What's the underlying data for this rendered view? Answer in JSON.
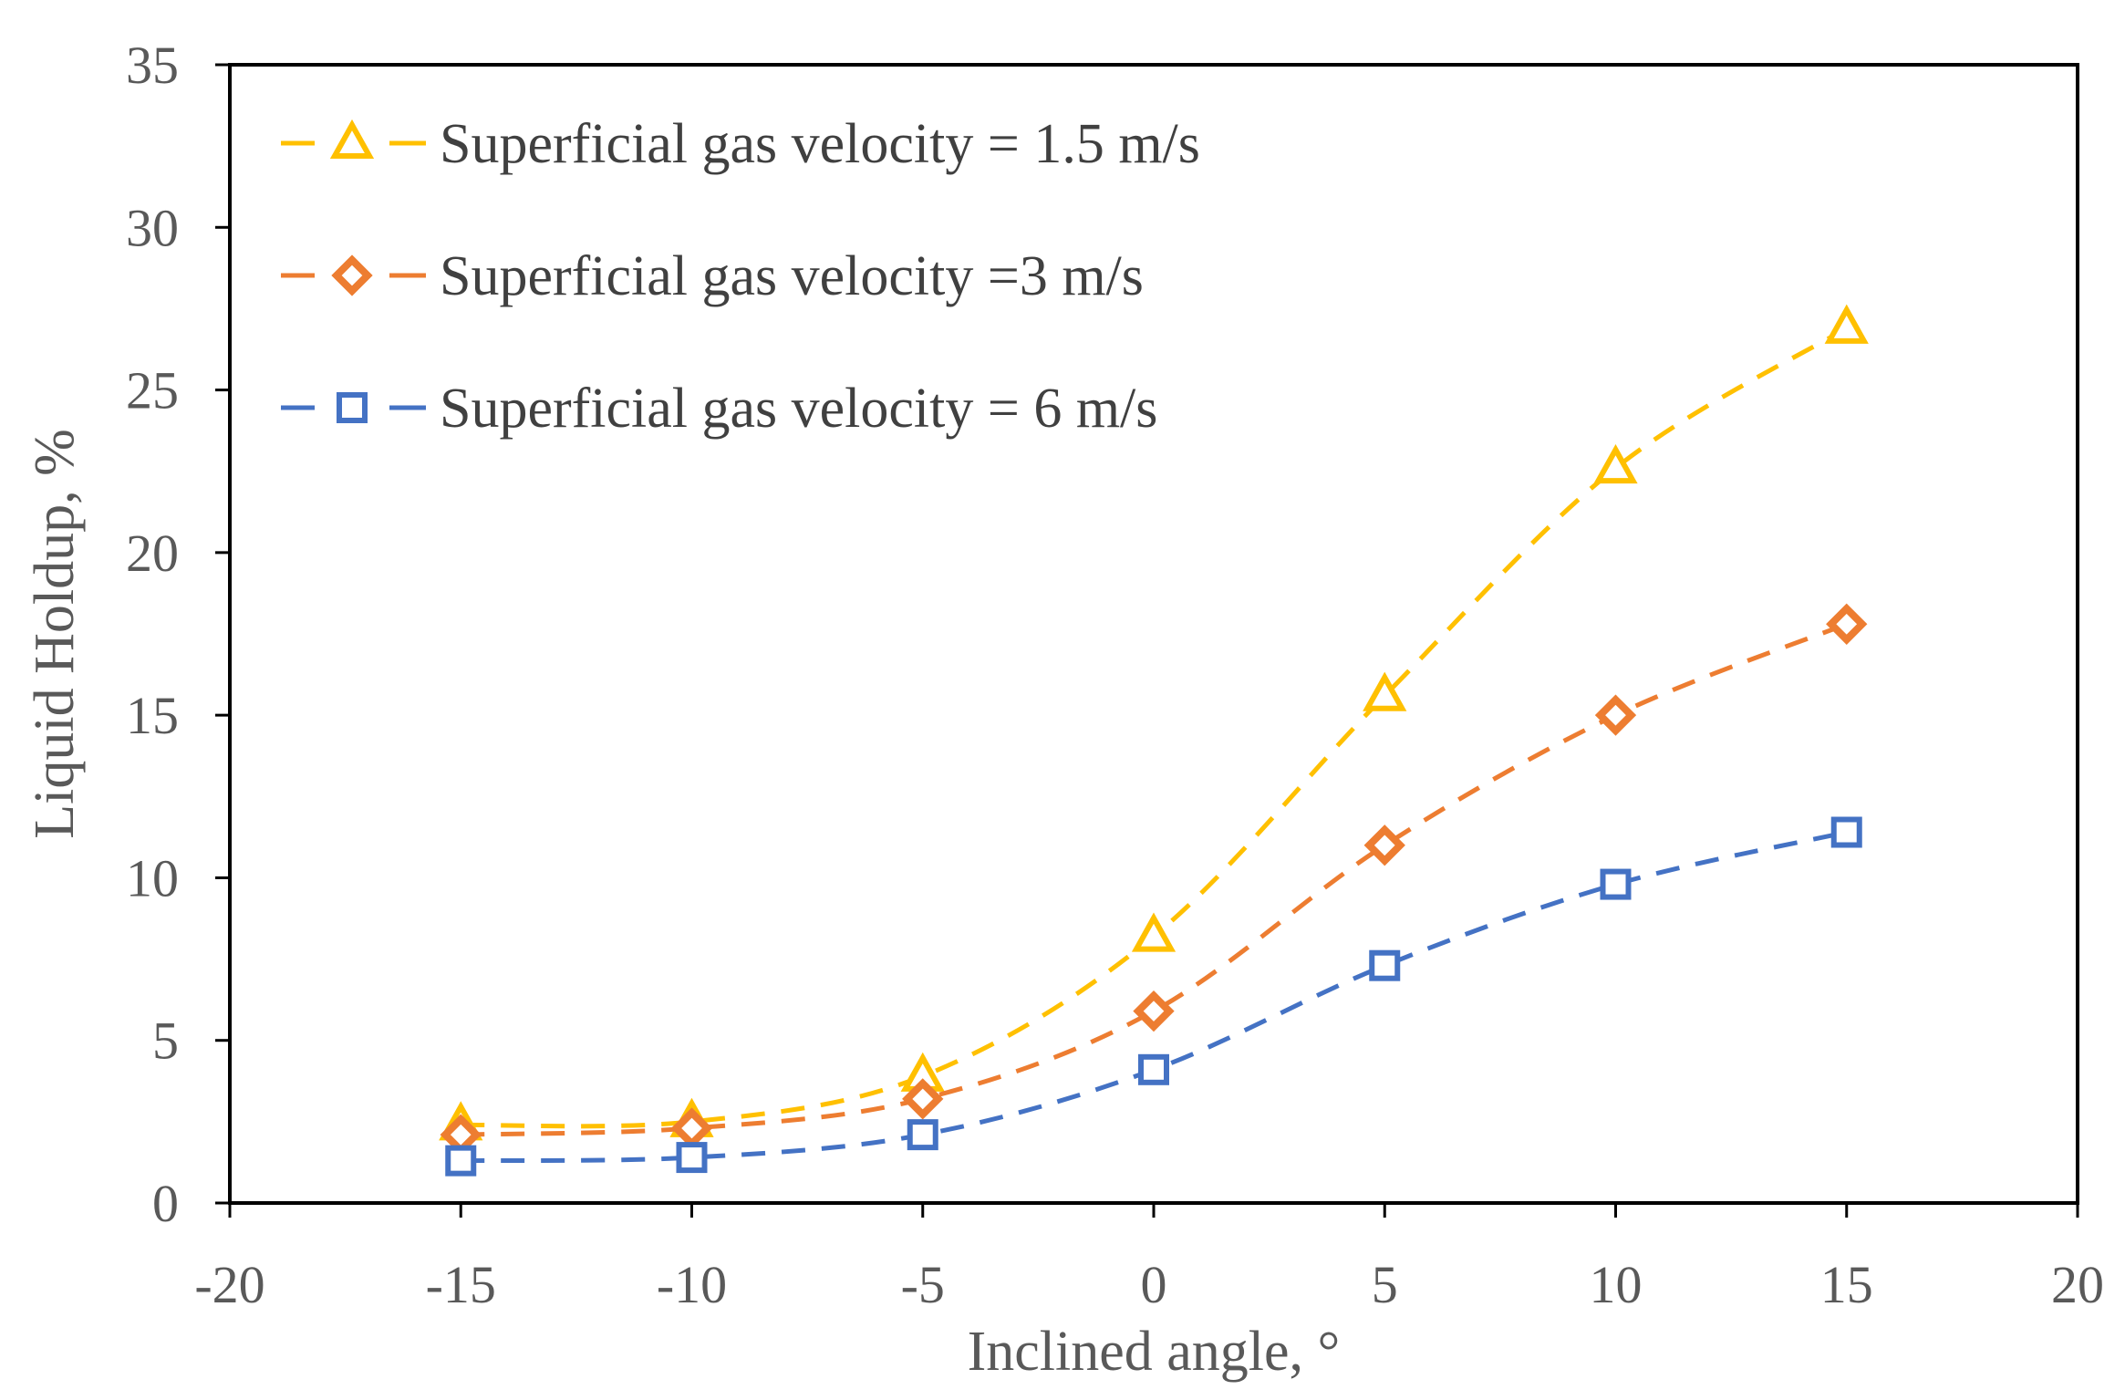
{
  "chart_data": {
    "type": "line",
    "title": "",
    "xlabel": "Inclined angle, °",
    "ylabel": "Liquid Holdup, %",
    "xlim": [
      -20,
      20
    ],
    "ylim": [
      0,
      35
    ],
    "x_ticks": [
      -20,
      -15,
      -10,
      -5,
      0,
      5,
      10,
      15,
      20
    ],
    "y_ticks": [
      0,
      5,
      10,
      15,
      20,
      25,
      30,
      35
    ],
    "x_tick_labels": [
      "-20",
      "-15",
      "-10",
      "-5",
      "0",
      "5",
      "10",
      "15",
      "20"
    ],
    "y_tick_labels": [
      "0",
      "5",
      "10",
      "15",
      "20",
      "25",
      "30",
      "35"
    ],
    "grid": false,
    "legend_position": "top-left",
    "x": [
      -15,
      -10,
      -5,
      0,
      5,
      10,
      15
    ],
    "series": [
      {
        "name": "Superficial gas velocity = 1.5 m/s",
        "color": "#FFC000",
        "marker": "triangle",
        "line_style": "dashed",
        "values": [
          2.4,
          2.5,
          3.9,
          8.2,
          15.6,
          22.6,
          26.9
        ]
      },
      {
        "name": "Superficial gas velocity =3 m/s",
        "color": "#ED7D31",
        "marker": "diamond",
        "line_style": "dashed",
        "values": [
          2.1,
          2.3,
          3.2,
          5.9,
          11.0,
          15.0,
          17.8
        ]
      },
      {
        "name": "Superficial gas velocity = 6 m/s",
        "color": "#4472C4",
        "marker": "square",
        "line_style": "dashed",
        "values": [
          1.3,
          1.4,
          2.1,
          4.1,
          7.3,
          9.8,
          11.4
        ]
      }
    ]
  }
}
